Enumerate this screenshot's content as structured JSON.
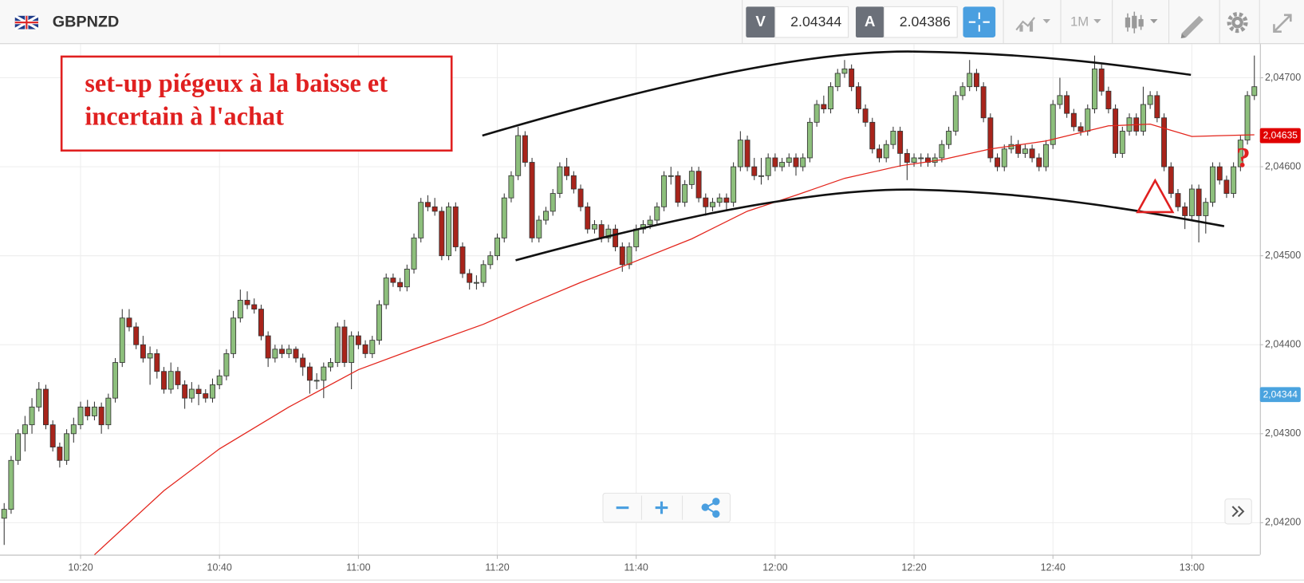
{
  "header": {
    "symbol": "GBPNZD",
    "sell_label": "V",
    "sell_price": 2.04344,
    "buy_label": "A",
    "buy_price": 2.04386,
    "timeframe": "1M"
  },
  "annotation": {
    "lines": [
      "set-up piégeux à la baisse et",
      "incertain à l'achat"
    ],
    "mark": "?"
  },
  "chart_data": {
    "type": "candlestick",
    "up_color": "#8dbf7c",
    "down_color": "#a8241b",
    "ylim": [
      2.04164,
      2.04736
    ],
    "yticks": [
      {
        "value": 2.042,
        "label": "2,04200"
      },
      {
        "value": 2.043,
        "label": "2,04300"
      },
      {
        "value": 2.044,
        "label": "2,04400"
      },
      {
        "value": 2.045,
        "label": "2,04500"
      },
      {
        "value": 2.046,
        "label": "2,04600"
      },
      {
        "value": 2.047,
        "label": "2,04700"
      }
    ],
    "xlim": [
      -0.6,
      180.8
    ],
    "xticks": [
      {
        "value": 11,
        "label": "10:20"
      },
      {
        "value": 31,
        "label": "10:40"
      },
      {
        "value": 51,
        "label": "11:00"
      },
      {
        "value": 71,
        "label": "11:20"
      },
      {
        "value": 91,
        "label": "11:40"
      },
      {
        "value": 111,
        "label": "12:00"
      },
      {
        "value": 131,
        "label": "12:20"
      },
      {
        "value": 151,
        "label": "12:40"
      },
      {
        "value": 171,
        "label": "13:00"
      }
    ],
    "grid": true,
    "price_markers": [
      {
        "value": 2.04635,
        "label": "2,04635",
        "color": "#e00000"
      },
      {
        "value": 2.04344,
        "label": "2,04344",
        "color": "#4aa3df"
      }
    ],
    "moving_average": {
      "color": "#e3241b",
      "x": [
        13,
        23,
        31,
        41,
        51,
        59,
        69,
        76,
        83,
        90,
        99,
        107,
        114,
        121,
        129,
        135,
        142,
        150,
        159,
        165,
        171,
        180
      ],
      "values": [
        2.04164,
        2.04236,
        2.04283,
        2.0433,
        2.04372,
        2.04395,
        2.04423,
        2.04447,
        2.0447,
        2.04491,
        2.04519,
        2.0455,
        2.04568,
        2.04587,
        2.04601,
        2.04608,
        2.0462,
        2.04629,
        2.04646,
        2.04648,
        2.04634,
        2.04636
      ]
    },
    "candles": [
      [
        2.04205,
        2.04222,
        2.04175,
        2.04215
      ],
      [
        2.04215,
        2.04275,
        2.0421,
        2.0427
      ],
      [
        2.0427,
        2.04305,
        2.04265,
        2.043
      ],
      [
        2.043,
        2.0432,
        2.0428,
        2.0431
      ],
      [
        2.0431,
        2.0434,
        2.043,
        2.0433
      ],
      [
        2.0433,
        2.04358,
        2.04325,
        2.0435
      ],
      [
        2.0435,
        2.04355,
        2.04305,
        2.0431
      ],
      [
        2.0431,
        2.04315,
        2.0428,
        2.04285
      ],
      [
        2.04285,
        2.0429,
        2.04262,
        2.0427
      ],
      [
        2.0427,
        2.04305,
        2.04265,
        2.043
      ],
      [
        2.043,
        2.04318,
        2.0429,
        2.0431
      ],
      [
        2.0431,
        2.04336,
        2.04305,
        2.0433
      ],
      [
        2.0433,
        2.04338,
        2.04315,
        2.0432
      ],
      [
        2.0432,
        2.04336,
        2.04315,
        2.0433
      ],
      [
        2.0433,
        2.04335,
        2.043,
        2.0431
      ],
      [
        2.0431,
        2.04345,
        2.04305,
        2.0434
      ],
      [
        2.0434,
        2.04385,
        2.04335,
        2.0438
      ],
      [
        2.0438,
        2.0444,
        2.04375,
        2.0443
      ],
      [
        2.0443,
        2.0444,
        2.04415,
        2.0442
      ],
      [
        2.0442,
        2.04425,
        2.04395,
        2.044
      ],
      [
        2.044,
        2.0441,
        2.0438,
        2.04385
      ],
      [
        2.04385,
        2.04398,
        2.04355,
        2.0439
      ],
      [
        2.0439,
        2.04395,
        2.04362,
        2.0437
      ],
      [
        2.0437,
        2.04375,
        2.04345,
        2.0435
      ],
      [
        2.0435,
        2.0438,
        2.04345,
        2.0437
      ],
      [
        2.0437,
        2.04375,
        2.0435,
        2.04355
      ],
      [
        2.04355,
        2.0436,
        2.04328,
        2.0434
      ],
      [
        2.0434,
        2.04358,
        2.04335,
        2.0435
      ],
      [
        2.0435,
        2.04355,
        2.04332,
        2.04345
      ],
      [
        2.04345,
        2.0435,
        2.04335,
        2.0434
      ],
      [
        2.0434,
        2.04362,
        2.04335,
        2.04355
      ],
      [
        2.04355,
        2.04372,
        2.0435,
        2.04365
      ],
      [
        2.04365,
        2.04395,
        2.0436,
        2.0439
      ],
      [
        2.0439,
        2.04438,
        2.04385,
        2.0443
      ],
      [
        2.0443,
        2.04462,
        2.04425,
        2.0445
      ],
      [
        2.0445,
        2.0446,
        2.0444,
        2.04445
      ],
      [
        2.04445,
        2.04452,
        2.04435,
        2.0444
      ],
      [
        2.0444,
        2.04445,
        2.04405,
        2.0441
      ],
      [
        2.0441,
        2.04415,
        2.04375,
        2.04385
      ],
      [
        2.04385,
        2.044,
        2.0438,
        2.04395
      ],
      [
        2.04395,
        2.044,
        2.04385,
        2.0439
      ],
      [
        2.0439,
        2.044,
        2.04385,
        2.04395
      ],
      [
        2.04395,
        2.04398,
        2.0438,
        2.04385
      ],
      [
        2.04385,
        2.0439,
        2.04365,
        2.04375
      ],
      [
        2.04375,
        2.0438,
        2.04345,
        2.0436
      ],
      [
        2.0436,
        2.04368,
        2.0435,
        2.0436
      ],
      [
        2.0436,
        2.0438,
        2.0434,
        2.04375
      ],
      [
        2.04375,
        2.04385,
        2.0437,
        2.0438
      ],
      [
        2.0438,
        2.04425,
        2.04375,
        2.0442
      ],
      [
        2.0442,
        2.04428,
        2.04375,
        2.0438
      ],
      [
        2.0438,
        2.04415,
        2.0435,
        2.0441
      ],
      [
        2.0441,
        2.04415,
        2.04395,
        2.044
      ],
      [
        2.044,
        2.04405,
        2.04385,
        2.0439
      ],
      [
        2.0439,
        2.0441,
        2.04385,
        2.04405
      ],
      [
        2.04405,
        2.0445,
        2.044,
        2.04445
      ],
      [
        2.04445,
        2.0448,
        2.0444,
        2.04475
      ],
      [
        2.04475,
        2.0448,
        2.04465,
        2.0447
      ],
      [
        2.0447,
        2.04475,
        2.0446,
        2.04465
      ],
      [
        2.04465,
        2.0449,
        2.0446,
        2.04485
      ],
      [
        2.04485,
        2.04525,
        2.0448,
        2.0452
      ],
      [
        2.0452,
        2.04565,
        2.04515,
        2.0456
      ],
      [
        2.0456,
        2.04568,
        2.0455,
        2.04555
      ],
      [
        2.04555,
        2.04565,
        2.04545,
        2.0455
      ],
      [
        2.0455,
        2.04555,
        2.04495,
        2.045
      ],
      [
        2.045,
        2.0456,
        2.04495,
        2.04555
      ],
      [
        2.04555,
        2.0456,
        2.04505,
        2.0451
      ],
      [
        2.0451,
        2.04515,
        2.04475,
        2.0448
      ],
      [
        2.0448,
        2.04485,
        2.04462,
        2.0447
      ],
      [
        2.0447,
        2.04478,
        2.04462,
        2.0447
      ],
      [
        2.0447,
        2.04495,
        2.04465,
        2.0449
      ],
      [
        2.0449,
        2.04505,
        2.04485,
        2.045
      ],
      [
        2.045,
        2.04525,
        2.04495,
        2.0452
      ],
      [
        2.0452,
        2.0457,
        2.04515,
        2.04565
      ],
      [
        2.04565,
        2.04595,
        2.0456,
        2.0459
      ],
      [
        2.0459,
        2.04645,
        2.04585,
        2.04635
      ],
      [
        2.04635,
        2.0464,
        2.046,
        2.04605
      ],
      [
        2.04605,
        2.0461,
        2.04515,
        2.0452
      ],
      [
        2.0452,
        2.04545,
        2.04515,
        2.0454
      ],
      [
        2.0454,
        2.04555,
        2.04535,
        2.0455
      ],
      [
        2.0455,
        2.04575,
        2.04545,
        2.0457
      ],
      [
        2.0457,
        2.04605,
        2.04565,
        2.046
      ],
      [
        2.046,
        2.0461,
        2.04585,
        2.0459
      ],
      [
        2.0459,
        2.04595,
        2.0457,
        2.04575
      ],
      [
        2.04575,
        2.0458,
        2.0455,
        2.04555
      ],
      [
        2.04555,
        2.0456,
        2.04525,
        2.0453
      ],
      [
        2.0453,
        2.0454,
        2.04525,
        2.04535
      ],
      [
        2.04535,
        2.0454,
        2.04515,
        2.0452
      ],
      [
        2.0452,
        2.04535,
        2.04515,
        2.0453
      ],
      [
        2.0453,
        2.04535,
        2.04505,
        2.0451
      ],
      [
        2.0451,
        2.04515,
        2.04482,
        2.0449
      ],
      [
        2.0449,
        2.04515,
        2.04485,
        2.0451
      ],
      [
        2.0451,
        2.04535,
        2.04505,
        2.0453
      ],
      [
        2.0453,
        2.0454,
        2.04525,
        2.04535
      ],
      [
        2.04535,
        2.04545,
        2.0453,
        2.0454
      ],
      [
        2.0454,
        2.0456,
        2.04535,
        2.04555
      ],
      [
        2.04555,
        2.04595,
        2.0455,
        2.0459
      ],
      [
        2.0459,
        2.046,
        2.0458,
        2.0459
      ],
      [
        2.0459,
        2.04595,
        2.04555,
        2.0456
      ],
      [
        2.0456,
        2.04585,
        2.04555,
        2.0458
      ],
      [
        2.0458,
        2.046,
        2.04575,
        2.04595
      ],
      [
        2.04595,
        2.046,
        2.0456,
        2.04565
      ],
      [
        2.04565,
        2.0457,
        2.04545,
        2.04555
      ],
      [
        2.04555,
        2.04565,
        2.0455,
        2.0456
      ],
      [
        2.0456,
        2.0457,
        2.04555,
        2.04565
      ],
      [
        2.04565,
        2.0457,
        2.0455,
        2.0456
      ],
      [
        2.0456,
        2.04605,
        2.04555,
        2.046
      ],
      [
        2.046,
        2.0464,
        2.04595,
        2.0463
      ],
      [
        2.0463,
        2.04635,
        2.04595,
        2.046
      ],
      [
        2.046,
        2.0461,
        2.04585,
        2.0459
      ],
      [
        2.0459,
        2.0461,
        2.0458,
        2.0459
      ],
      [
        2.0459,
        2.04615,
        2.04585,
        2.0461
      ],
      [
        2.0461,
        2.04615,
        2.04595,
        2.046
      ],
      [
        2.046,
        2.0461,
        2.04595,
        2.04605
      ],
      [
        2.04605,
        2.04615,
        2.046,
        2.0461
      ],
      [
        2.0461,
        2.04615,
        2.0459,
        2.046
      ],
      [
        2.046,
        2.04615,
        2.04595,
        2.0461
      ],
      [
        2.0461,
        2.04655,
        2.04605,
        2.0465
      ],
      [
        2.0465,
        2.04675,
        2.04645,
        2.0467
      ],
      [
        2.0467,
        2.0468,
        2.0466,
        2.04665
      ],
      [
        2.04665,
        2.04695,
        2.0466,
        2.0469
      ],
      [
        2.0469,
        2.0471,
        2.04685,
        2.04705
      ],
      [
        2.04705,
        2.0472,
        2.047,
        2.0471
      ],
      [
        2.0471,
        2.04715,
        2.04685,
        2.0469
      ],
      [
        2.0469,
        2.04695,
        2.0466,
        2.04665
      ],
      [
        2.04665,
        2.0467,
        2.04645,
        2.0465
      ],
      [
        2.0465,
        2.04655,
        2.04615,
        2.0462
      ],
      [
        2.0462,
        2.04625,
        2.04605,
        2.0461
      ],
      [
        2.0461,
        2.0463,
        2.04605,
        2.04625
      ],
      [
        2.04625,
        2.04645,
        2.0462,
        2.0464
      ],
      [
        2.0464,
        2.04645,
        2.046,
        2.04615
      ],
      [
        2.04615,
        2.0462,
        2.04585,
        2.04605
      ],
      [
        2.04605,
        2.04615,
        2.046,
        2.0461
      ],
      [
        2.0461,
        2.04615,
        2.046,
        2.0461
      ],
      [
        2.0461,
        2.04615,
        2.046,
        2.04605
      ],
      [
        2.04605,
        2.04615,
        2.046,
        2.0461
      ],
      [
        2.0461,
        2.0463,
        2.04605,
        2.04625
      ],
      [
        2.04625,
        2.04645,
        2.0462,
        2.0464
      ],
      [
        2.0464,
        2.04685,
        2.04635,
        2.0468
      ],
      [
        2.0468,
        2.04695,
        2.04675,
        2.0469
      ],
      [
        2.0469,
        2.0472,
        2.04685,
        2.04705
      ],
      [
        2.04705,
        2.0471,
        2.04685,
        2.0469
      ],
      [
        2.0469,
        2.04695,
        2.0465,
        2.04655
      ],
      [
        2.04655,
        2.0466,
        2.04605,
        2.0461
      ],
      [
        2.0461,
        2.04615,
        2.04595,
        2.046
      ],
      [
        2.046,
        2.04625,
        2.04595,
        2.0462
      ],
      [
        2.0462,
        2.04635,
        2.04615,
        2.04625
      ],
      [
        2.04625,
        2.0463,
        2.0461,
        2.04615
      ],
      [
        2.04615,
        2.04625,
        2.0461,
        2.0462
      ],
      [
        2.0462,
        2.04625,
        2.04605,
        2.0461
      ],
      [
        2.0461,
        2.04615,
        2.04595,
        2.046
      ],
      [
        2.046,
        2.0463,
        2.04595,
        2.04625
      ],
      [
        2.04625,
        2.04675,
        2.0462,
        2.0467
      ],
      [
        2.0467,
        2.047,
        2.04665,
        2.0468
      ],
      [
        2.0468,
        2.04685,
        2.04655,
        2.0466
      ],
      [
        2.0466,
        2.04665,
        2.0464,
        2.04645
      ],
      [
        2.04645,
        2.0465,
        2.04635,
        2.0464
      ],
      [
        2.0464,
        2.0467,
        2.04635,
        2.04665
      ],
      [
        2.04665,
        2.04725,
        2.0466,
        2.0471
      ],
      [
        2.0471,
        2.04715,
        2.0468,
        2.04685
      ],
      [
        2.04685,
        2.0469,
        2.0466,
        2.04665
      ],
      [
        2.04665,
        2.0467,
        2.0461,
        2.04615
      ],
      [
        2.04615,
        2.04645,
        2.0461,
        2.0464
      ],
      [
        2.0464,
        2.0466,
        2.04635,
        2.04655
      ],
      [
        2.04655,
        2.0466,
        2.04635,
        2.0464
      ],
      [
        2.0464,
        2.0469,
        2.04635,
        2.0467
      ],
      [
        2.0467,
        2.04685,
        2.04665,
        2.0468
      ],
      [
        2.0468,
        2.04685,
        2.0465,
        2.04655
      ],
      [
        2.04655,
        2.0466,
        2.04595,
        2.046
      ],
      [
        2.046,
        2.04605,
        2.04565,
        2.0457
      ],
      [
        2.0457,
        2.04575,
        2.0455,
        2.04555
      ],
      [
        2.04555,
        2.0456,
        2.0453,
        2.04545
      ],
      [
        2.04545,
        2.0458,
        2.0454,
        2.04575
      ],
      [
        2.04575,
        2.0458,
        2.04515,
        2.04545
      ],
      [
        2.04545,
        2.04565,
        2.04525,
        2.0456
      ],
      [
        2.0456,
        2.04605,
        2.04555,
        2.046
      ],
      [
        2.046,
        2.04605,
        2.0458,
        2.04585
      ],
      [
        2.04585,
        2.0459,
        2.04565,
        2.0457
      ],
      [
        2.0457,
        2.04605,
        2.04565,
        2.046
      ],
      [
        2.046,
        2.04635,
        2.04595,
        2.0463
      ],
      [
        2.0463,
        2.04685,
        2.04625,
        2.0468
      ],
      [
        2.0468,
        2.04725,
        2.04675,
        2.0469
      ]
    ]
  }
}
